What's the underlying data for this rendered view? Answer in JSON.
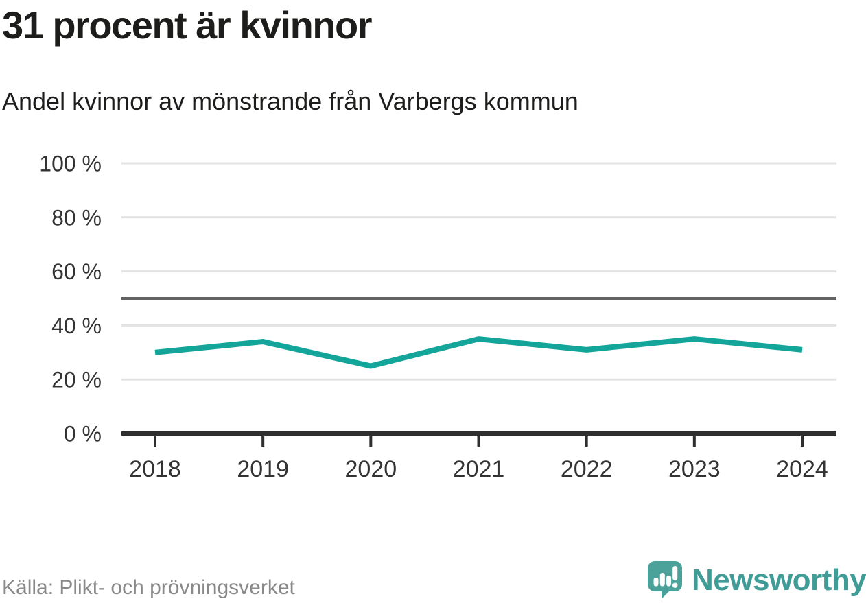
{
  "header": {
    "title": "31 procent är kvinnor",
    "subtitle": "Andel kvinnor av mönstrande från Varbergs kommun"
  },
  "chart_data": {
    "type": "line",
    "title": "31 procent är kvinnor",
    "subtitle": "Andel kvinnor av mönstrande från Varbergs kommun",
    "categories": [
      "2018",
      "2019",
      "2020",
      "2021",
      "2022",
      "2023",
      "2024"
    ],
    "series": [
      {
        "name": "Andel kvinnor av mönstrande",
        "values": [
          30,
          34,
          25,
          35,
          31,
          35,
          31
        ]
      }
    ],
    "unit": "%",
    "ylim": [
      0,
      100
    ],
    "yticks": [
      0,
      20,
      40,
      60,
      80,
      100
    ],
    "ytick_suffix": " %",
    "reference_line": 50,
    "grid": true,
    "legend": false,
    "line_color": "#13a59a",
    "grid_color": "#e3e3e3",
    "axis_color": "#2f2f2f",
    "reference_line_color": "#636363"
  },
  "footer": {
    "source": "Källa: Plikt- och prövningsverket",
    "brand": "Newsworthy",
    "brand_color": "#3f9c96"
  }
}
